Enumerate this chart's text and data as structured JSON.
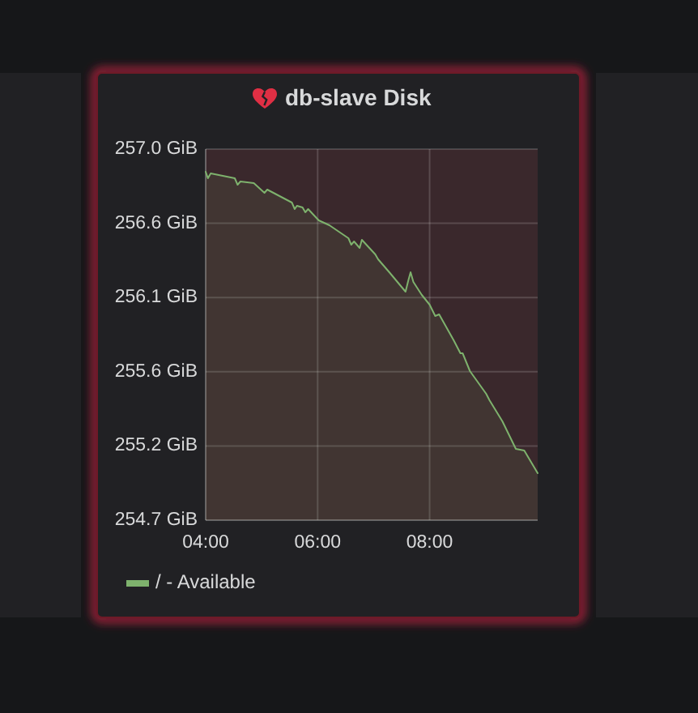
{
  "chart_data": {
    "type": "area",
    "title": "db-slave Disk",
    "x": [
      4.0,
      4.04,
      4.09,
      4.52,
      4.57,
      4.62,
      4.86,
      5.05,
      5.1,
      5.54,
      5.59,
      5.63,
      5.73,
      5.78,
      5.83,
      6.02,
      6.21,
      6.55,
      6.6,
      6.65,
      6.75,
      6.79,
      7.03,
      7.08,
      7.28,
      7.57,
      7.62,
      7.66,
      7.71,
      7.86,
      8.0,
      8.1,
      8.17,
      8.43,
      8.55,
      8.59,
      8.72,
      9.01,
      9.07,
      9.3,
      9.54,
      9.69,
      9.93
    ],
    "series": [
      {
        "name": "/ - Available",
        "color": "#7eb26d",
        "values": [
          256.87,
          256.83,
          256.86,
          256.83,
          256.79,
          256.81,
          256.8,
          256.74,
          256.76,
          256.68,
          256.64,
          256.66,
          256.65,
          256.62,
          256.64,
          256.57,
          256.54,
          256.46,
          256.42,
          256.44,
          256.4,
          256.45,
          256.36,
          256.33,
          256.25,
          256.13,
          256.2,
          256.25,
          256.19,
          256.11,
          256.05,
          255.98,
          255.99,
          255.83,
          255.75,
          255.75,
          255.64,
          255.5,
          255.46,
          255.33,
          255.16,
          255.15,
          255.01
        ]
      }
    ],
    "xlim": [
      4,
      9.93
    ],
    "xticks": [
      {
        "value": 4,
        "label": "04:00"
      },
      {
        "value": 6,
        "label": "06:00"
      },
      {
        "value": 8,
        "label": "08:00"
      }
    ],
    "ylim": [
      254.72,
      257.01
    ],
    "yticks": [
      {
        "value": 254.72,
        "label": "254.7 GiB"
      },
      {
        "value": 255.178,
        "label": "255.2 GiB"
      },
      {
        "value": 255.636,
        "label": "255.6 GiB"
      },
      {
        "value": 256.094,
        "label": "256.1 GiB"
      },
      {
        "value": 256.552,
        "label": "256.6 GiB"
      },
      {
        "value": 257.01,
        "label": "257.0 GiB"
      }
    ],
    "grid": true,
    "legend": "bottom left",
    "bands": [
      {
        "axis": "y",
        "from": 254.72,
        "to": 257.01,
        "color": "#3a282c"
      }
    ]
  }
}
